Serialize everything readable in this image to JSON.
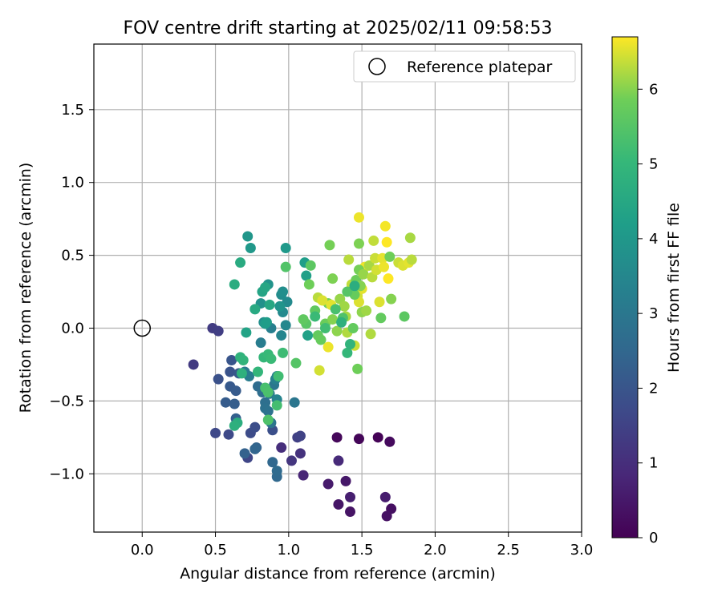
{
  "chart_data": {
    "type": "scatter",
    "title": "FOV centre drift starting at 2025/02/11 09:58:53",
    "xlabel": "Angular distance from reference (arcmin)",
    "ylabel": "Rotation from reference (arcmin)",
    "xlim": [
      -0.33,
      3.0
    ],
    "ylim": [
      -1.4,
      1.95
    ],
    "x_ticks": [
      "0.0",
      "0.5",
      "1.0",
      "1.5",
      "2.0",
      "2.5",
      "3.0"
    ],
    "y_ticks": [
      "−1.0",
      "−0.5",
      "0.0",
      "0.5",
      "1.0",
      "1.5"
    ],
    "grid": true,
    "legend": {
      "position": "top-right",
      "label": "Reference platepar"
    },
    "reference_point": {
      "x": 0.0,
      "y": 0.0
    },
    "colorbar": {
      "label": "Hours from first FF file",
      "colormap": "viridis",
      "range": [
        0,
        6.7
      ],
      "ticks": [
        "0",
        "1",
        "2",
        "3",
        "4",
        "5",
        "6"
      ]
    },
    "points": [
      [
        1.61,
        -0.75,
        0.05
      ],
      [
        1.48,
        -0.76,
        0.1
      ],
      [
        1.33,
        -0.75,
        0.15
      ],
      [
        1.69,
        -0.78,
        0.2
      ],
      [
        1.7,
        -1.24,
        0.3
      ],
      [
        1.67,
        -1.29,
        0.35
      ],
      [
        1.42,
        -1.26,
        0.4
      ],
      [
        1.34,
        -1.21,
        0.45
      ],
      [
        1.39,
        -1.05,
        0.5
      ],
      [
        1.27,
        -1.07,
        0.55
      ],
      [
        1.66,
        -1.16,
        0.6
      ],
      [
        1.42,
        -1.16,
        0.65
      ],
      [
        1.1,
        -1.01,
        0.8
      ],
      [
        1.34,
        -0.91,
        0.9
      ],
      [
        0.95,
        -0.82,
        1.0
      ],
      [
        1.08,
        -0.86,
        1.1
      ],
      [
        1.02,
        -0.91,
        1.2
      ],
      [
        0.35,
        -0.25,
        1.3
      ],
      [
        0.48,
        0.0,
        1.35
      ],
      [
        0.52,
        -0.02,
        1.4
      ],
      [
        1.06,
        -0.75,
        1.45
      ],
      [
        1.08,
        -0.74,
        1.5
      ],
      [
        0.72,
        -0.89,
        1.6
      ],
      [
        0.5,
        -0.72,
        1.65
      ],
      [
        0.59,
        -0.73,
        1.7
      ],
      [
        0.74,
        -0.72,
        1.75
      ],
      [
        0.77,
        -0.68,
        1.8
      ],
      [
        0.89,
        -0.7,
        1.85
      ],
      [
        0.52,
        -0.35,
        1.9
      ],
      [
        0.6,
        -0.3,
        1.95
      ],
      [
        0.61,
        -0.22,
        2.0
      ],
      [
        0.66,
        -0.31,
        2.05
      ],
      [
        0.6,
        -0.4,
        2.1
      ],
      [
        0.64,
        -0.43,
        2.15
      ],
      [
        0.57,
        -0.51,
        2.2
      ],
      [
        0.63,
        -0.52,
        2.25
      ],
      [
        0.64,
        -0.62,
        2.3
      ],
      [
        0.7,
        -0.86,
        2.35
      ],
      [
        0.78,
        -0.82,
        2.4
      ],
      [
        0.77,
        -0.83,
        2.45
      ],
      [
        0.89,
        -0.92,
        2.5
      ],
      [
        0.92,
        -1.02,
        2.55
      ],
      [
        0.92,
        -0.98,
        2.6
      ],
      [
        0.79,
        -0.4,
        2.65
      ],
      [
        0.82,
        -0.44,
        2.7
      ],
      [
        0.84,
        -0.51,
        2.75
      ],
      [
        0.84,
        -0.55,
        2.8
      ],
      [
        0.86,
        -0.57,
        2.85
      ],
      [
        0.88,
        -0.65,
        2.9
      ],
      [
        1.04,
        -0.51,
        2.95
      ],
      [
        0.9,
        -0.39,
        3.0
      ],
      [
        0.87,
        -0.45,
        3.05
      ],
      [
        0.7,
        -0.3,
        3.1
      ],
      [
        0.73,
        -0.33,
        3.15
      ],
      [
        0.81,
        -0.1,
        3.2
      ],
      [
        0.88,
        0.0,
        3.25
      ],
      [
        0.91,
        -0.35,
        3.3
      ],
      [
        0.92,
        -0.33,
        3.35
      ],
      [
        0.92,
        -0.49,
        3.4
      ],
      [
        0.95,
        -0.05,
        3.45
      ],
      [
        0.98,
        0.02,
        3.5
      ],
      [
        0.96,
        0.11,
        3.55
      ],
      [
        0.99,
        0.18,
        3.6
      ],
      [
        0.95,
        0.23,
        3.65
      ],
      [
        0.96,
        0.25,
        3.7
      ],
      [
        0.83,
        0.04,
        3.75
      ],
      [
        0.81,
        0.17,
        3.8
      ],
      [
        0.86,
        0.3,
        3.85
      ],
      [
        0.94,
        0.15,
        3.9
      ],
      [
        0.72,
        0.63,
        3.95
      ],
      [
        0.74,
        0.55,
        4.0
      ],
      [
        0.98,
        0.55,
        4.05
      ],
      [
        0.84,
        0.03,
        4.1
      ],
      [
        0.85,
        0.04,
        4.15
      ],
      [
        1.11,
        0.45,
        4.2
      ],
      [
        1.12,
        0.36,
        4.25
      ],
      [
        1.13,
        -0.05,
        4.3
      ],
      [
        0.71,
        -0.03,
        4.35
      ],
      [
        0.82,
        0.25,
        4.4
      ],
      [
        0.84,
        0.28,
        4.45
      ],
      [
        0.87,
        0.16,
        4.5
      ],
      [
        0.77,
        0.13,
        4.55
      ],
      [
        0.67,
        0.45,
        4.6
      ],
      [
        0.63,
        0.3,
        4.65
      ],
      [
        0.65,
        -0.65,
        4.7
      ],
      [
        0.63,
        -0.67,
        4.75
      ],
      [
        0.68,
        -0.31,
        4.8
      ],
      [
        0.67,
        -0.2,
        4.85
      ],
      [
        0.69,
        -0.22,
        4.9
      ],
      [
        0.79,
        -0.3,
        4.95
      ],
      [
        0.83,
        -0.2,
        5.0
      ],
      [
        0.86,
        -0.18,
        5.05
      ],
      [
        0.88,
        -0.21,
        5.1
      ],
      [
        0.96,
        -0.17,
        5.15
      ],
      [
        0.93,
        -0.33,
        5.2
      ],
      [
        0.92,
        -0.53,
        5.25
      ],
      [
        0.84,
        -0.41,
        5.3
      ],
      [
        0.86,
        -0.44,
        5.35
      ],
      [
        0.86,
        -0.63,
        5.4
      ],
      [
        0.98,
        0.42,
        5.45
      ],
      [
        1.05,
        -0.24,
        5.5
      ],
      [
        1.12,
        0.03,
        5.55
      ],
      [
        1.15,
        0.43,
        5.6
      ],
      [
        1.18,
        0.12,
        5.65
      ],
      [
        1.2,
        -0.05,
        5.7
      ],
      [
        1.22,
        -0.08,
        5.75
      ],
      [
        1.25,
        0.03,
        5.8
      ],
      [
        1.27,
        0.17,
        5.85
      ],
      [
        1.28,
        0.57,
        5.9
      ],
      [
        1.3,
        0.34,
        5.95
      ],
      [
        1.3,
        0.06,
        6.0
      ],
      [
        1.33,
        -0.02,
        6.05
      ],
      [
        1.35,
        0.2,
        6.1
      ],
      [
        1.38,
        0.15,
        6.15
      ],
      [
        1.39,
        0.08,
        6.2
      ],
      [
        1.4,
        -0.03,
        6.25
      ],
      [
        1.41,
        0.47,
        6.3
      ],
      [
        1.43,
        0.3,
        6.35
      ],
      [
        1.45,
        -0.12,
        6.4
      ],
      [
        1.47,
        0.22,
        6.45
      ],
      [
        1.48,
        0.18,
        6.5
      ],
      [
        1.5,
        0.27,
        6.55
      ],
      [
        1.52,
        0.42,
        6.6
      ],
      [
        1.1,
        0.06,
        5.65
      ],
      [
        1.14,
        0.3,
        5.85
      ],
      [
        1.2,
        0.21,
        6.3
      ],
      [
        1.21,
        -0.29,
        6.45
      ],
      [
        1.23,
        0.19,
        6.5
      ],
      [
        1.27,
        -0.13,
        6.6
      ],
      [
        1.29,
        0.16,
        6.55
      ],
      [
        1.44,
        0.0,
        5.7
      ],
      [
        1.45,
        0.23,
        5.75
      ],
      [
        1.46,
        0.33,
        5.8
      ],
      [
        1.47,
        -0.28,
        5.85
      ],
      [
        1.48,
        0.4,
        5.9
      ],
      [
        1.48,
        0.58,
        5.95
      ],
      [
        1.49,
        0.29,
        6.0
      ],
      [
        1.5,
        0.11,
        6.05
      ],
      [
        1.51,
        0.37,
        6.1
      ],
      [
        1.53,
        0.12,
        6.15
      ],
      [
        1.55,
        0.43,
        6.2
      ],
      [
        1.56,
        -0.04,
        6.25
      ],
      [
        1.57,
        0.35,
        6.3
      ],
      [
        1.58,
        0.6,
        6.35
      ],
      [
        1.59,
        0.48,
        6.4
      ],
      [
        1.6,
        0.4,
        6.45
      ],
      [
        1.62,
        0.18,
        6.5
      ],
      [
        1.63,
        0.07,
        5.7
      ],
      [
        1.64,
        0.48,
        6.55
      ],
      [
        1.65,
        0.42,
        6.6
      ],
      [
        1.66,
        0.7,
        6.65
      ],
      [
        1.67,
        0.59,
        6.7
      ],
      [
        1.68,
        0.34,
        6.7
      ],
      [
        1.69,
        0.49,
        5.85
      ],
      [
        1.7,
        0.2,
        6.0
      ],
      [
        1.48,
        0.76,
        6.6
      ],
      [
        1.75,
        0.45,
        6.4
      ],
      [
        1.78,
        0.43,
        6.5
      ],
      [
        1.79,
        0.08,
        5.6
      ],
      [
        1.83,
        0.62,
        6.2
      ],
      [
        1.82,
        0.45,
        6.55
      ],
      [
        1.84,
        0.47,
        6.3
      ],
      [
        1.4,
        0.25,
        5.5
      ],
      [
        1.37,
        0.07,
        5.4
      ],
      [
        1.32,
        0.13,
        5.3
      ],
      [
        1.25,
        0.0,
        5.2
      ],
      [
        1.18,
        0.08,
        5.1
      ],
      [
        1.4,
        -0.17,
        5.0
      ],
      [
        1.42,
        -0.11,
        4.9
      ],
      [
        1.36,
        0.04,
        4.8
      ],
      [
        1.45,
        0.29,
        4.7
      ]
    ]
  }
}
